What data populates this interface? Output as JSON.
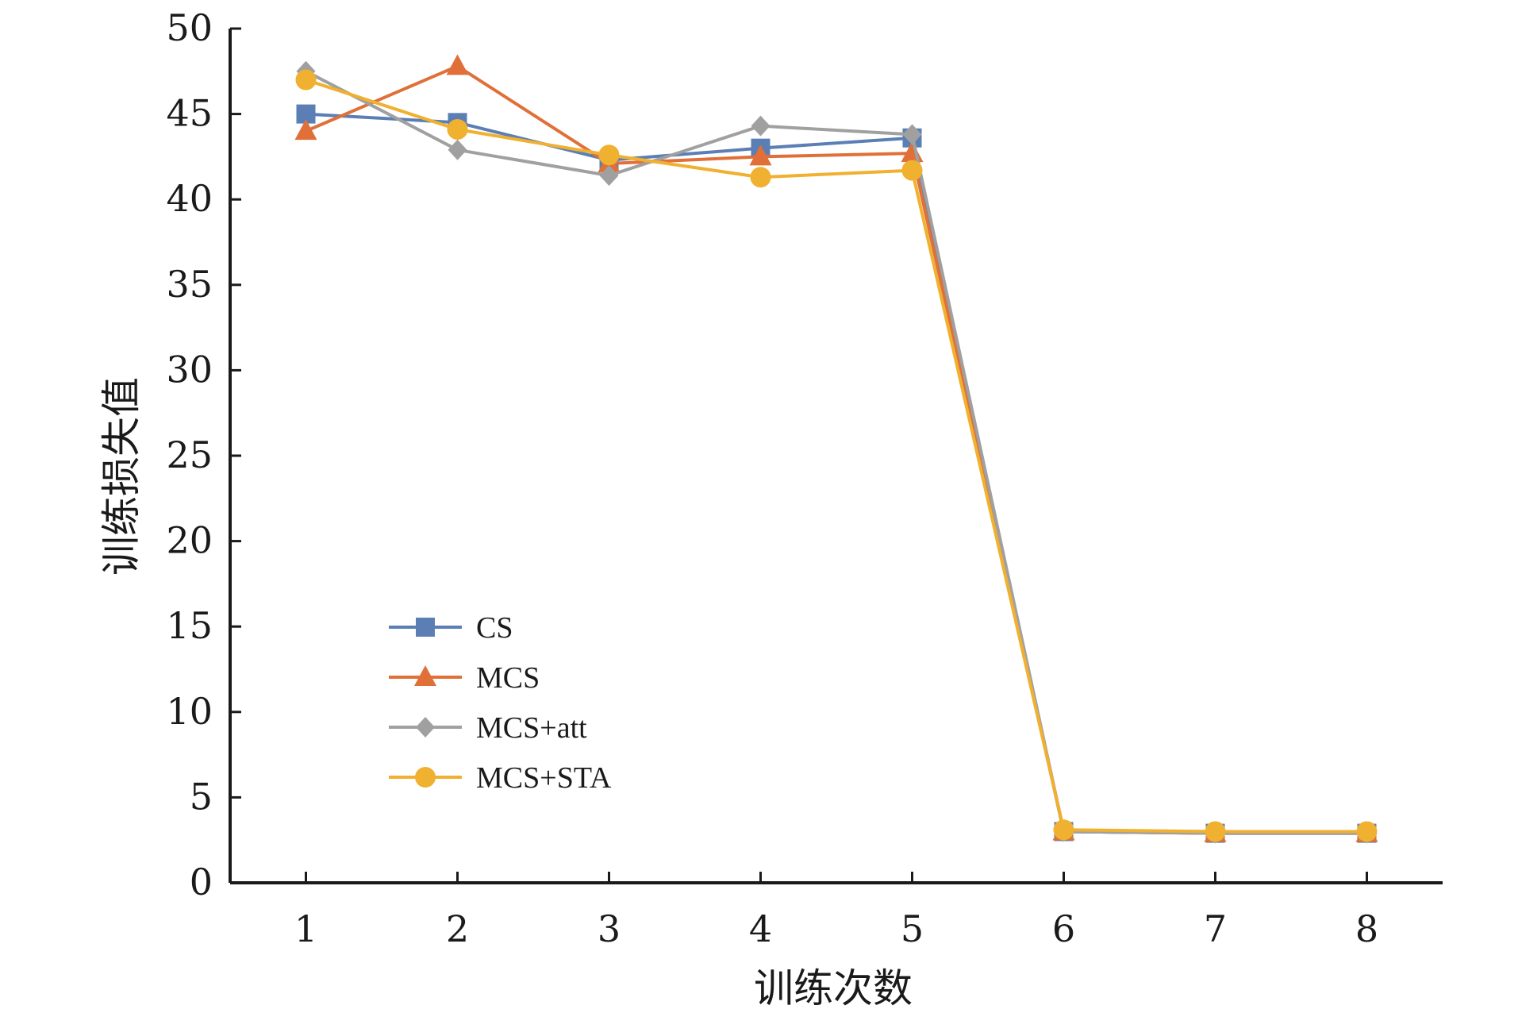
{
  "chart_data": {
    "type": "line",
    "xlabel": "训练次数",
    "ylabel": "训练损失值",
    "x": [
      1,
      2,
      3,
      4,
      5,
      6,
      7,
      8
    ],
    "xlim": [
      0.5,
      8.5
    ],
    "ylim": [
      0,
      50
    ],
    "yticks": [
      0,
      5,
      10,
      15,
      20,
      25,
      30,
      35,
      40,
      45,
      50
    ],
    "grid": false,
    "legend_position": "bottom-left",
    "series": [
      {
        "name": "CS",
        "color": "#5b7fb5",
        "marker": "square",
        "values": [
          45.0,
          44.5,
          42.3,
          43.0,
          43.6,
          3.0,
          2.9,
          2.9
        ]
      },
      {
        "name": "MCS",
        "color": "#e07038",
        "marker": "triangle",
        "values": [
          44.0,
          47.8,
          42.1,
          42.5,
          42.7,
          3.0,
          2.9,
          2.9
        ]
      },
      {
        "name": "MCS+att",
        "color": "#a0a0a0",
        "marker": "diamond",
        "values": [
          47.5,
          42.9,
          41.4,
          44.3,
          43.8,
          3.0,
          2.9,
          2.9
        ]
      },
      {
        "name": "MCS+STA",
        "color": "#f0b030",
        "marker": "circle",
        "values": [
          47.0,
          44.1,
          42.6,
          41.3,
          41.7,
          3.1,
          3.0,
          3.0
        ]
      }
    ]
  }
}
